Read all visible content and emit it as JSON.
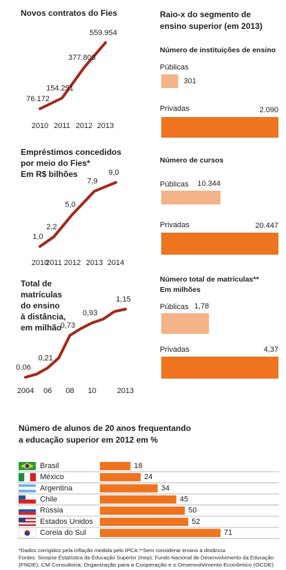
{
  "section_title": [
    "Raio-x do segmento de",
    "ensino superior (em 2013)"
  ],
  "notes": [
    "*Dados corrigidos pela inflação medida pelo IPCA **Sem considerar ensino à distância",
    "Fontes: Sinopse Estatística da Educação Superior (Inep); Fundo Nacional de Desenvolvimento da Educação",
    "(FNDE); CM Consultoria; Organização para a Cooperação e o Desenvolvimento Econômico (OCDE)"
  ],
  "chart_data": [
    {
      "type": "line",
      "title": [
        "Novos contratos do Fies"
      ],
      "categories": [
        "2010",
        "2011",
        "2012",
        "2013"
      ],
      "values": [
        76172,
        154251,
        377803,
        559954
      ],
      "value_labels": [
        "76.172",
        "154.251",
        "377.803",
        "559.954"
      ],
      "color": "#a3281c"
    },
    {
      "type": "line",
      "title": [
        "Empréstimos concedidos",
        "por meio do Fies*",
        "Em R$ bilhões"
      ],
      "categories": [
        "2010",
        "2011",
        "2012",
        "2013",
        "2014"
      ],
      "values": [
        1.0,
        2.2,
        5.0,
        7.9,
        9.0
      ],
      "value_labels": [
        "1,0",
        "2,2",
        "5,0",
        "7,9",
        "9,0"
      ],
      "color": "#a3281c"
    },
    {
      "type": "line",
      "title": [
        "Total de",
        "matrículas",
        "do ensino",
        "à distância,",
        "em milhão"
      ],
      "x": [
        2004,
        2005,
        2006,
        2007,
        2008,
        2009,
        2010,
        2011,
        2012,
        2013
      ],
      "values": [
        0.06,
        0.11,
        0.21,
        0.37,
        0.73,
        0.84,
        0.93,
        0.99,
        1.11,
        1.15
      ],
      "value_labels": [
        "0,06",
        null,
        "0,21",
        null,
        "0,73",
        null,
        "0,93",
        null,
        null,
        "1,15"
      ],
      "xlim": [
        2004,
        2013
      ],
      "xticks": [
        2004,
        {
          "value": 2006,
          "label": "06"
        },
        {
          "value": 2008,
          "label": "08"
        },
        {
          "value": 2010,
          "label": "10"
        },
        2013
      ],
      "color": "#a3281c"
    },
    {
      "type": "bar",
      "title": [
        "Número de instituições de ensino"
      ],
      "categories": [
        "Públicas",
        "Privadas"
      ],
      "values": [
        301,
        2090
      ],
      "value_labels": [
        "301",
        "2.090"
      ],
      "colors": [
        "#f4b386",
        "#ee7420"
      ]
    },
    {
      "type": "bar",
      "title": [
        "Número de cursos"
      ],
      "categories": [
        "Públicas",
        "Privadas"
      ],
      "values": [
        10344,
        20447
      ],
      "value_labels": [
        "10.344",
        "20.447"
      ],
      "colors": [
        "#f4b386",
        "#ee7420"
      ]
    },
    {
      "type": "bar",
      "title": [
        "Número total de matrículas**",
        "Em milhões"
      ],
      "categories": [
        "Públicas",
        "Privadas"
      ],
      "values": [
        1.78,
        4.37
      ],
      "value_labels": [
        "1,78",
        "4,37"
      ],
      "colors": [
        "#f4b386",
        "#ee7420"
      ]
    },
    {
      "type": "hbar",
      "title": [
        "Número de alunos de 20 anos frequentando",
        "a educação superior em 2012 em %"
      ],
      "categories": [
        "Brasil",
        "México",
        "Argentina",
        "Chile",
        "Rússia",
        "Estados Unidos",
        "Coreia do Sul"
      ],
      "values": [
        18,
        24,
        34,
        45,
        50,
        52,
        71
      ],
      "color": "#ee7420"
    }
  ]
}
